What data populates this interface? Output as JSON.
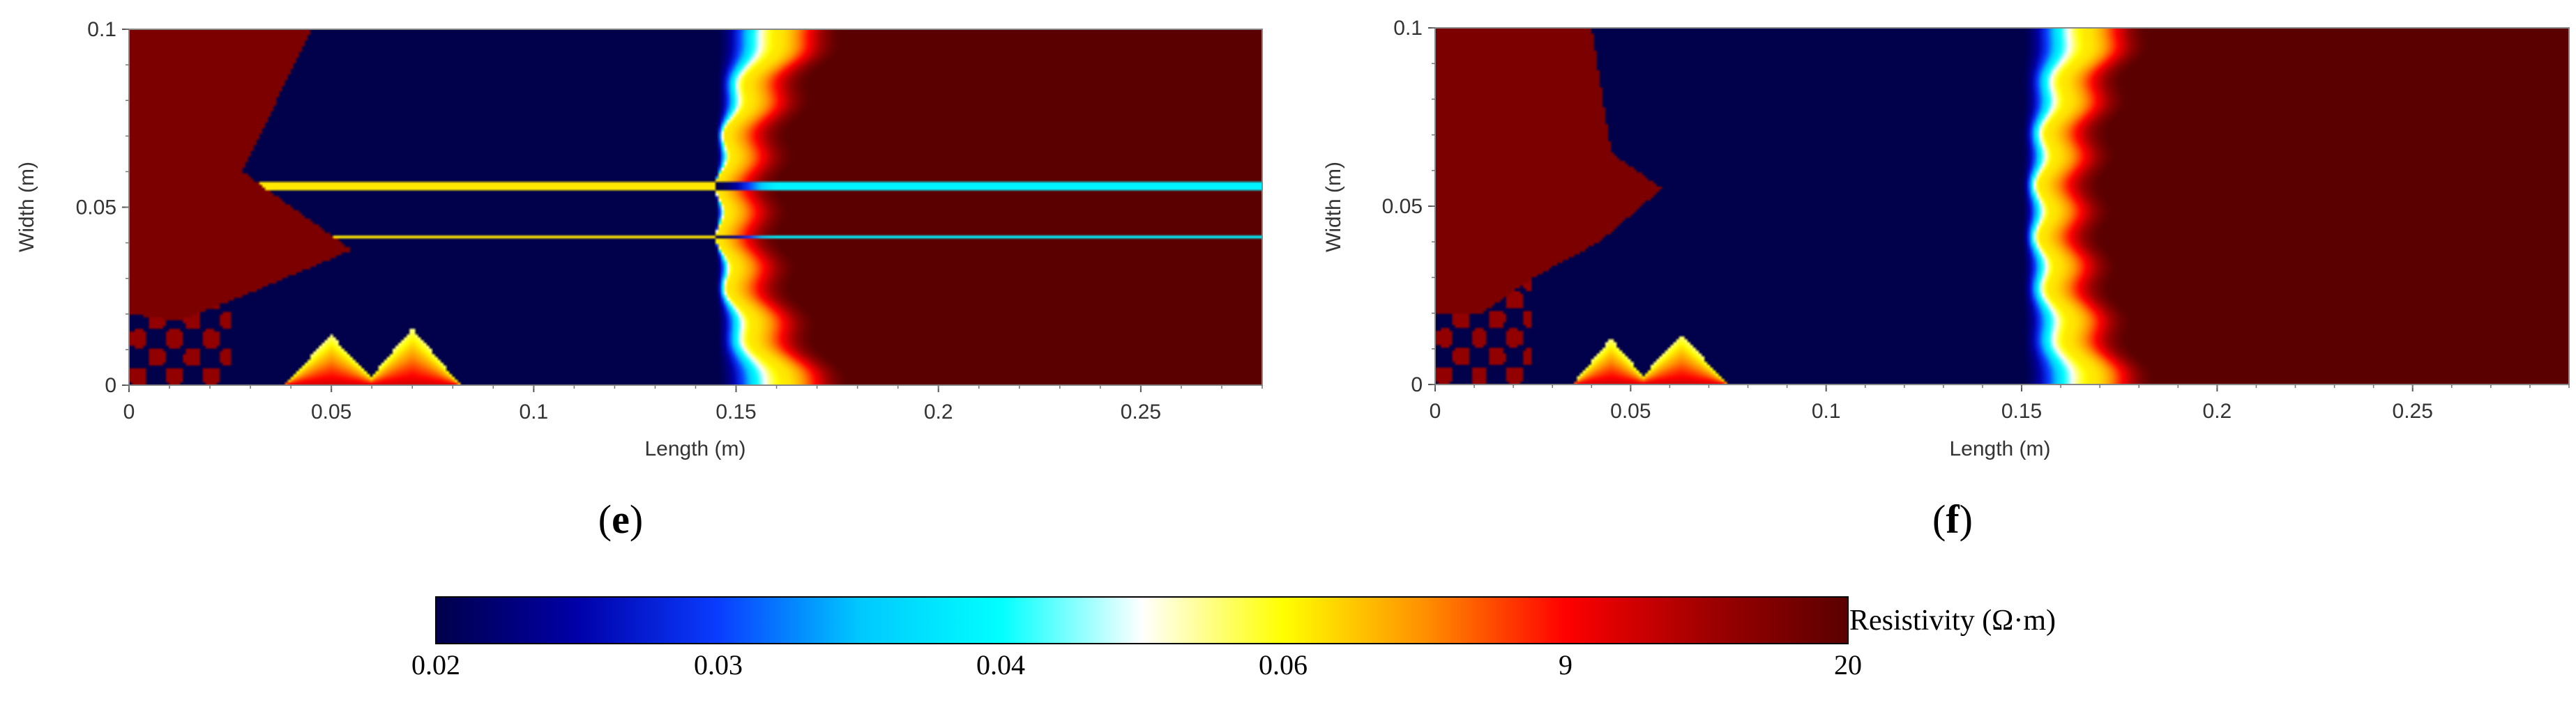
{
  "chart_data": [
    {
      "type": "heatmap",
      "caption": "(e)",
      "caption_letter": "e",
      "xlabel": "Length (m)",
      "ylabel": "Width (m)",
      "xlim": [
        0,
        0.28
      ],
      "ylim": [
        0,
        0.1
      ],
      "xticks": [
        0,
        0.05,
        0.1,
        0.15,
        0.2,
        0.25
      ],
      "xtick_labels": [
        "0",
        "0.05",
        "0.1",
        "0.15",
        "0.2",
        "0.25"
      ],
      "yticks": [
        0,
        0.05,
        0.1
      ],
      "ytick_labels": [
        "0",
        "0.05",
        "0.1"
      ],
      "field": {
        "front_x": 0.162,
        "front_width": 0.016,
        "front_curve": 0.016,
        "ripple_amplitude": 0.0015,
        "low_zone_end_x": 0.145,
        "resistive_region": [
          [
            0,
            0.1
          ],
          [
            0.045,
            0.1
          ],
          [
            0.028,
            0.06
          ],
          [
            0.055,
            0.038
          ],
          [
            0.028,
            0.025
          ],
          [
            0.012,
            0.018
          ],
          [
            0,
            0.02
          ]
        ],
        "bottom_peaks": [
          {
            "x": 0.05,
            "width": 0.012,
            "height": 0.014
          },
          {
            "x": 0.07,
            "width": 0.012,
            "height": 0.016
          }
        ]
      }
    },
    {
      "type": "heatmap",
      "caption": "(f)",
      "caption_letter": "f",
      "xlabel": "Length (m)",
      "ylabel": "Width (m)",
      "xlim": [
        0,
        0.29
      ],
      "ylim": [
        0,
        0.1
      ],
      "xticks": [
        0,
        0.05,
        0.1,
        0.15,
        0.2,
        0.25
      ],
      "xtick_labels": [
        "0",
        "0.05",
        "0.1",
        "0.15",
        "0.2",
        "0.25"
      ],
      "yticks": [
        0,
        0.05,
        0.1
      ],
      "ytick_labels": [
        "0",
        "0.05",
        "0.1"
      ],
      "field": {
        "front_x": 0.168,
        "front_width": 0.016,
        "front_curve": 0.012,
        "ripple_amplitude": 0.0015,
        "low_zone_end_x": 0.15,
        "resistive_region": [
          [
            0,
            0.1
          ],
          [
            0.04,
            0.1
          ],
          [
            0.045,
            0.065
          ],
          [
            0.058,
            0.055
          ],
          [
            0.042,
            0.04
          ],
          [
            0.025,
            0.03
          ],
          [
            0.012,
            0.02
          ],
          [
            0,
            0.02
          ]
        ],
        "bottom_peaks": [
          {
            "x": 0.045,
            "width": 0.01,
            "height": 0.013
          },
          {
            "x": 0.063,
            "width": 0.012,
            "height": 0.014
          }
        ]
      }
    }
  ],
  "colorbar": {
    "title": "Resistivity (Ω·m)",
    "tick_labels": [
      "0.02",
      "0.03",
      "0.04",
      "0.06",
      "9",
      "20"
    ],
    "colors": [
      "#00004b",
      "#0000a8",
      "#0a3cff",
      "#00c8ff",
      "#00ffff",
      "#ffffff",
      "#ffff00",
      "#ff9000",
      "#ff0000",
      "#a00000",
      "#5a0000"
    ]
  }
}
